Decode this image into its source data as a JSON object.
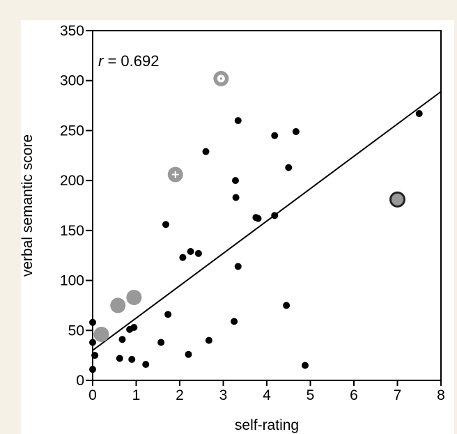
{
  "chart_data": {
    "type": "scatter",
    "xlabel": "self-rating",
    "ylabel": "verbal semantic score",
    "xlim": [
      0,
      8
    ],
    "ylim": [
      0,
      350
    ],
    "x_ticks": [
      "0",
      "1",
      "2",
      "3",
      "4",
      "5",
      "6",
      "7",
      "8"
    ],
    "y_ticks": [
      "0",
      "50",
      "100",
      "150",
      "200",
      "250",
      "300",
      "350"
    ],
    "annotation": {
      "r_symbol": "r",
      "r_text": " = 0.692"
    },
    "regression_line": {
      "x": [
        0,
        8
      ],
      "y": [
        30,
        289
      ]
    },
    "colors": {
      "point": "#000000",
      "highlight": "#999999",
      "line": "#000000"
    },
    "points": [
      {
        "x": 0.0,
        "y": 58
      },
      {
        "x": 0.0,
        "y": 38
      },
      {
        "x": 0.05,
        "y": 25
      },
      {
        "x": 0.0,
        "y": 11
      },
      {
        "x": 0.62,
        "y": 22
      },
      {
        "x": 0.68,
        "y": 41
      },
      {
        "x": 0.85,
        "y": 51
      },
      {
        "x": 0.95,
        "y": 53
      },
      {
        "x": 0.9,
        "y": 21
      },
      {
        "x": 1.22,
        "y": 16
      },
      {
        "x": 1.57,
        "y": 38
      },
      {
        "x": 1.68,
        "y": 156
      },
      {
        "x": 1.73,
        "y": 66
      },
      {
        "x": 2.07,
        "y": 123
      },
      {
        "x": 2.25,
        "y": 129
      },
      {
        "x": 2.43,
        "y": 127
      },
      {
        "x": 2.2,
        "y": 26
      },
      {
        "x": 2.6,
        "y": 229
      },
      {
        "x": 2.67,
        "y": 40
      },
      {
        "x": 3.25,
        "y": 59
      },
      {
        "x": 3.28,
        "y": 200
      },
      {
        "x": 3.29,
        "y": 183
      },
      {
        "x": 3.34,
        "y": 114
      },
      {
        "x": 3.34,
        "y": 260
      },
      {
        "x": 3.75,
        "y": 163
      },
      {
        "x": 3.8,
        "y": 162
      },
      {
        "x": 4.18,
        "y": 165
      },
      {
        "x": 4.18,
        "y": 245
      },
      {
        "x": 4.45,
        "y": 75
      },
      {
        "x": 4.5,
        "y": 213
      },
      {
        "x": 4.67,
        "y": 249
      },
      {
        "x": 4.88,
        "y": 15
      },
      {
        "x": 7.5,
        "y": 267
      }
    ],
    "highlighted_points": [
      {
        "x": 0.2,
        "y": 46,
        "marker": "filled"
      },
      {
        "x": 0.58,
        "y": 75,
        "marker": "filled"
      },
      {
        "x": 0.95,
        "y": 83,
        "marker": "filled"
      },
      {
        "x": 1.9,
        "y": 206,
        "marker": "plus"
      },
      {
        "x": 2.95,
        "y": 302,
        "marker": "square"
      },
      {
        "x": 7.0,
        "y": 181,
        "marker": "outlined"
      }
    ]
  }
}
